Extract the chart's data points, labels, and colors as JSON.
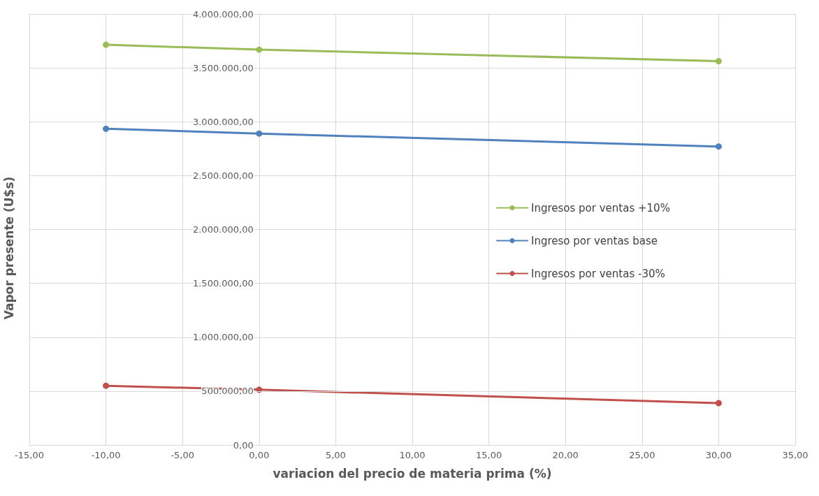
{
  "chart_data": {
    "type": "line",
    "xlabel": "variacion del precio de materia prima (%)",
    "ylabel": "Vapor presente (U$s)",
    "x": [
      -10,
      0,
      30
    ],
    "series": [
      {
        "name": "Ingresos por ventas +10%",
        "color": "#9bbb59",
        "values": [
          3714000,
          3669000,
          3562000
        ]
      },
      {
        "name": "Ingreso por ventas base",
        "color": "#4f81bd",
        "values": [
          2935000,
          2890000,
          2770000
        ]
      },
      {
        "name": "Ingresos por ventas -30%",
        "color": "#c0504d",
        "values": [
          550000,
          513000,
          389000
        ]
      }
    ],
    "xlim": [
      -15,
      35
    ],
    "xticks": [
      {
        "value": -15,
        "label": "-15,00"
      },
      {
        "value": -10,
        "label": "-10,00"
      },
      {
        "value": -5,
        "label": "-5,00"
      },
      {
        "value": 0,
        "label": "0,00"
      },
      {
        "value": 5,
        "label": "5,00"
      },
      {
        "value": 10,
        "label": "10,00"
      },
      {
        "value": 15,
        "label": "15,00"
      },
      {
        "value": 20,
        "label": "20,00"
      },
      {
        "value": 25,
        "label": "25,00"
      },
      {
        "value": 30,
        "label": "30,00"
      },
      {
        "value": 35,
        "label": "35,00"
      }
    ],
    "ylim": [
      0,
      4000000
    ],
    "yticks": [
      {
        "value": 0,
        "label": "0,00"
      },
      {
        "value": 500000,
        "label": "500.000,00"
      },
      {
        "value": 1000000,
        "label": "1.000.000,00"
      },
      {
        "value": 1500000,
        "label": "1.500.000,00"
      },
      {
        "value": 2000000,
        "label": "2.000.000,00"
      },
      {
        "value": 2500000,
        "label": "2.500.000,00"
      },
      {
        "value": 3000000,
        "label": "3.000.000,00"
      },
      {
        "value": 3500000,
        "label": "3.500.000,00"
      },
      {
        "value": 4000000,
        "label": "4.000.000,00"
      }
    ],
    "grid": true,
    "legend": "right",
    "marker": "circle",
    "line_style": "solid"
  }
}
